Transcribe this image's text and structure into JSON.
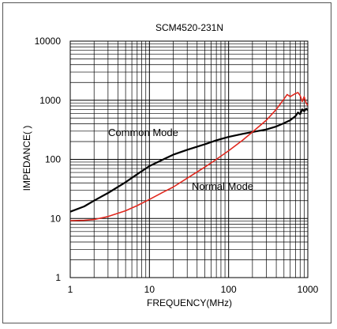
{
  "chart_data": {
    "type": "line",
    "title": "SCM4520-231N",
    "xlabel": "FREQUENCY(MHz)",
    "ylabel": "IMPEDANCE(  )",
    "x_scale": "log",
    "y_scale": "log",
    "xlim": [
      1,
      1000
    ],
    "ylim": [
      1,
      10000
    ],
    "grid": true,
    "x_ticks": [
      "1",
      "10",
      "100",
      "1000"
    ],
    "y_ticks": [
      "1",
      "10",
      "100",
      "1000",
      "10000"
    ],
    "series": [
      {
        "name": "Common Mode",
        "color": "#000000",
        "x": [
          1,
          1.5,
          2,
          3,
          5,
          7,
          10,
          15,
          20,
          30,
          50,
          70,
          100,
          150,
          200,
          300,
          400,
          500,
          600,
          700,
          750,
          800,
          850,
          900,
          950,
          1000
        ],
        "y": [
          13,
          16,
          20,
          27,
          41,
          56,
          77,
          100,
          120,
          145,
          180,
          210,
          240,
          270,
          290,
          320,
          360,
          410,
          460,
          540,
          620,
          580,
          700,
          650,
          720,
          680
        ]
      },
      {
        "name": "Normal Mode",
        "color": "#e0281e",
        "x": [
          1,
          1.5,
          2,
          3,
          5,
          7,
          10,
          15,
          20,
          30,
          50,
          70,
          100,
          150,
          200,
          300,
          400,
          500,
          550,
          600,
          700,
          750,
          800,
          850,
          900,
          950,
          1000
        ],
        "y": [
          9.2,
          9.3,
          9.6,
          10.8,
          13.5,
          16.5,
          21,
          28,
          34,
          48,
          74,
          100,
          140,
          210,
          290,
          460,
          700,
          1050,
          1250,
          1150,
          1300,
          1350,
          1200,
          950,
          1150,
          900,
          820
        ]
      }
    ]
  }
}
